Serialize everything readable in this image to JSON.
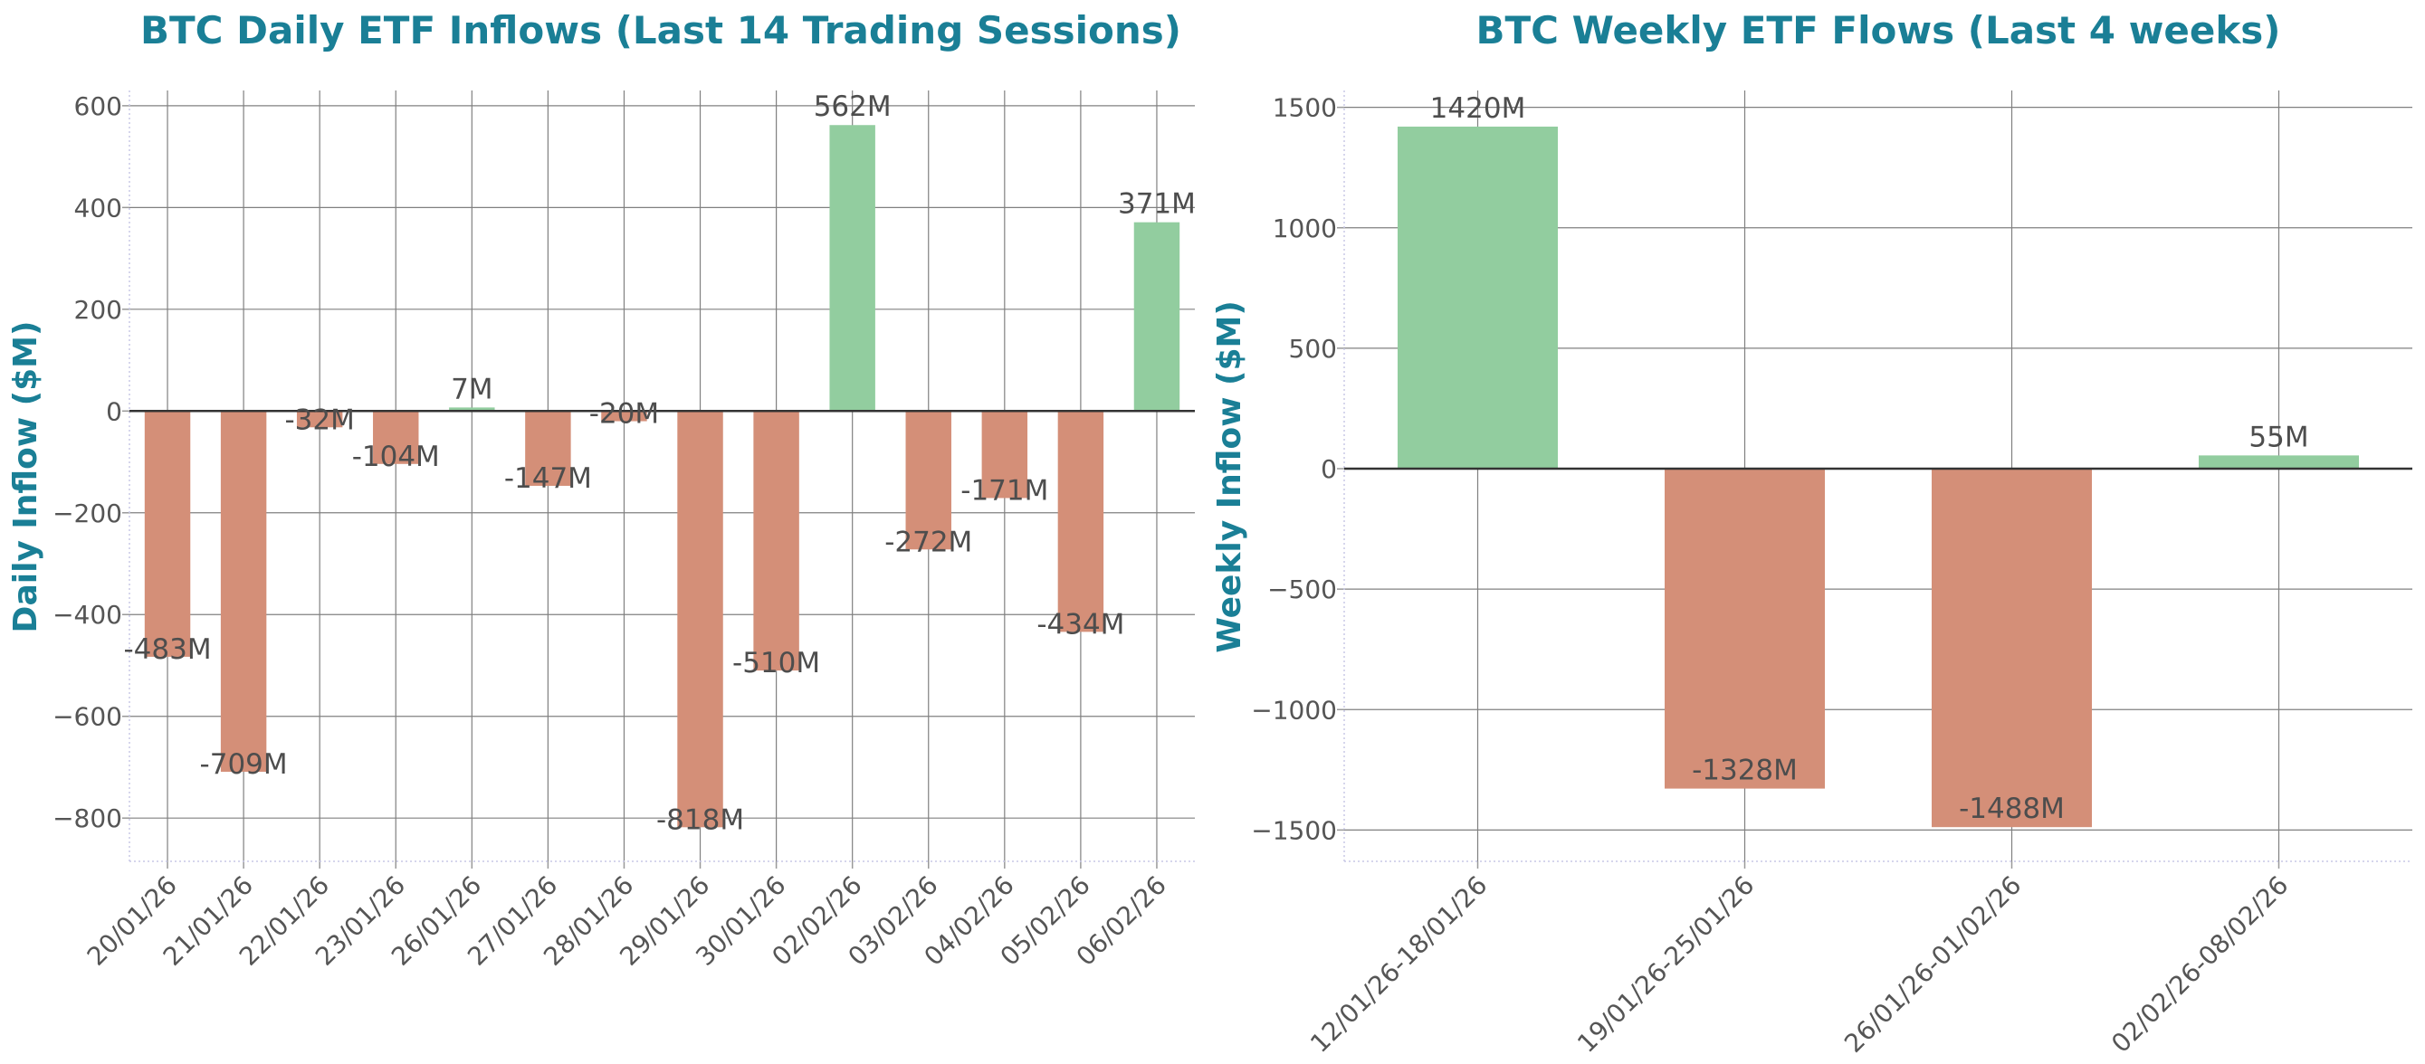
{
  "chart_data": [
    {
      "type": "bar",
      "title": "BTC Daily ETF Inflows (Last 14 Trading Sessions)",
      "xlabel": "",
      "ylabel": "Daily Inflow ($M)",
      "categories": [
        "20/01/26",
        "21/01/26",
        "22/01/26",
        "23/01/26",
        "26/01/26",
        "27/01/26",
        "28/01/26",
        "29/01/26",
        "30/01/26",
        "02/02/26",
        "03/02/26",
        "04/02/26",
        "05/02/26",
        "06/02/26"
      ],
      "values": [
        -483,
        -709,
        -32,
        -104,
        7,
        -147,
        -20,
        -818,
        -510,
        562,
        -272,
        -171,
        -434,
        371
      ],
      "data_labels": [
        "-483M",
        "-709M",
        "-32M",
        "-104M",
        "7M",
        "-147M",
        "-20M",
        "-818M",
        "-510M",
        "562M",
        "-272M",
        "-171M",
        "-434M",
        "371M"
      ],
      "ylim": [
        -885,
        630
      ],
      "yticks": [
        600,
        400,
        200,
        0,
        -200,
        -400,
        -600,
        -800
      ],
      "ytick_labels": [
        "600",
        "400",
        "200",
        "0",
        "−200",
        "−400",
        "−600",
        "−800"
      ],
      "grid": true,
      "legend": "none"
    },
    {
      "type": "bar",
      "title": "BTC Weekly ETF Flows (Last 4 weeks)",
      "xlabel": "",
      "ylabel": "Weekly Inflow ($M)",
      "categories": [
        "12/01/26-18/01/26",
        "19/01/26-25/01/26",
        "26/01/26-01/02/26",
        "02/02/26-08/02/26"
      ],
      "values": [
        1420,
        -1328,
        -1488,
        55
      ],
      "data_labels": [
        "1420M",
        "-1328M",
        "-1488M",
        "55M"
      ],
      "ylim": [
        -1630,
        1570
      ],
      "yticks": [
        1500,
        1000,
        500,
        0,
        -500,
        -1000,
        -1500
      ],
      "ytick_labels": [
        "1500",
        "1000",
        "500",
        "0",
        "−500",
        "−1000",
        "−1500"
      ],
      "grid": true,
      "legend": "none"
    }
  ],
  "colors": {
    "title": "#1a7f96",
    "positive": "#92cd9f",
    "negative": "#d48f78",
    "grid": "#808080",
    "zero_line": "#333333"
  }
}
